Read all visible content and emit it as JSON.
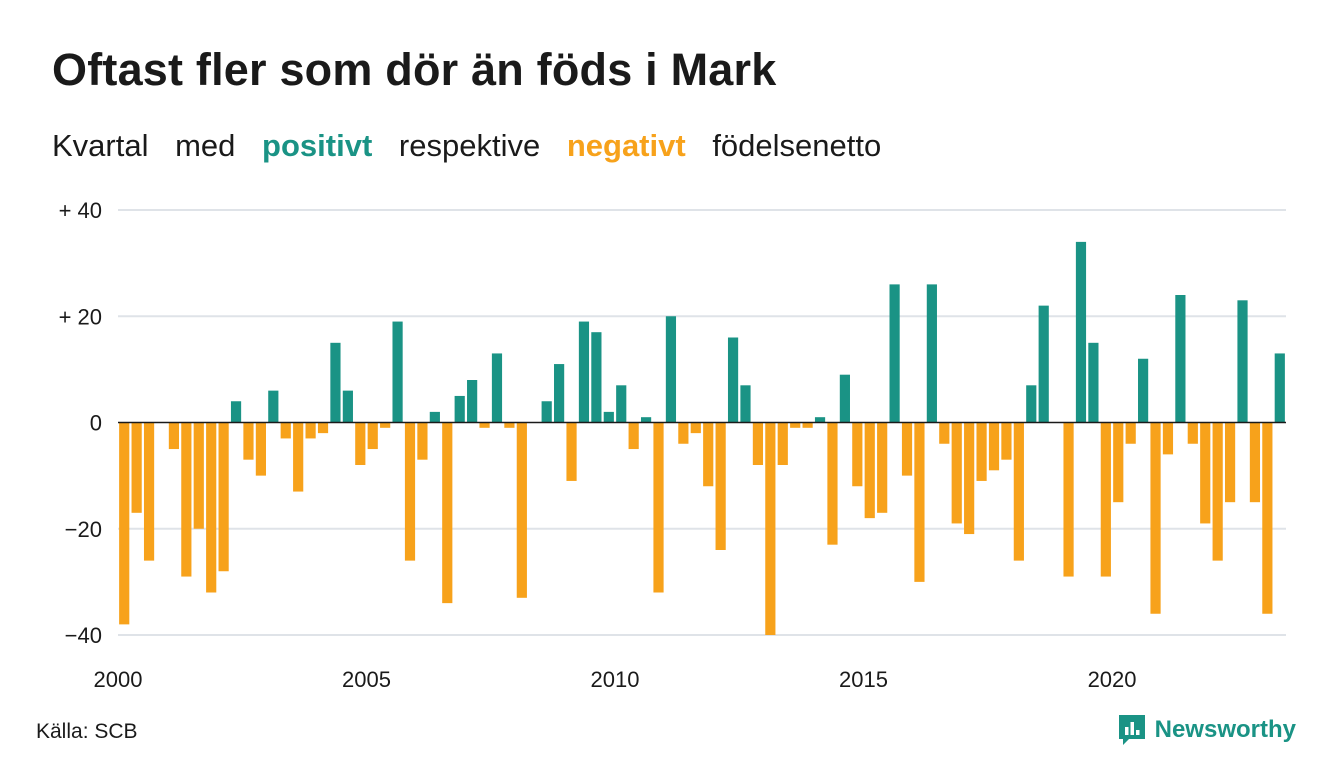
{
  "header": {
    "title": "Oftast fler som dör än föds i Mark",
    "subtitle": {
      "part1": "Kvartal",
      "part2": "med",
      "positive": "positivt",
      "part3": "respektive",
      "negative": "negativt",
      "part4": "födelsenetto"
    }
  },
  "footer": {
    "source": "Källa: SCB",
    "brand": "Newsworthy"
  },
  "colors": {
    "positive": "#1a9385",
    "negative": "#f7a21b",
    "grid": "#dfe3e8",
    "zero_line": "#1a1a1a"
  },
  "chart_data": {
    "type": "bar",
    "title": "Oftast fler som dör än föds i Mark",
    "subtitle": "Kvartal med positivt respektive negativt födelsenetto",
    "xlabel": "",
    "ylabel": "",
    "ylim": [
      -40,
      40
    ],
    "yticks": [
      {
        "value": 40,
        "label": "+ 40"
      },
      {
        "value": 20,
        "label": "+ 20"
      },
      {
        "value": 0,
        "label": "0"
      },
      {
        "value": -20,
        "label": "−20"
      },
      {
        "value": -40,
        "label": "−40"
      }
    ],
    "xticks": [
      {
        "year": 2000,
        "label": "2000"
      },
      {
        "year": 2005,
        "label": "2005"
      },
      {
        "year": 2010,
        "label": "2010"
      },
      {
        "year": 2015,
        "label": "2015"
      },
      {
        "year": 2020,
        "label": "2020"
      }
    ],
    "start": "2000 Q1",
    "grid": true,
    "legend": "none",
    "values": [
      -38,
      -17,
      -26,
      0,
      -5,
      -29,
      -20,
      -32,
      -28,
      4,
      -7,
      -10,
      6,
      -3,
      -13,
      -3,
      -2,
      15,
      6,
      -8,
      -5,
      -1,
      19,
      -26,
      -7,
      2,
      -34,
      5,
      8,
      -1,
      13,
      -1,
      -33,
      0,
      4,
      11,
      -11,
      19,
      17,
      2,
      7,
      -5,
      1,
      -32,
      20,
      -4,
      -2,
      -12,
      -24,
      16,
      7,
      -8,
      -40,
      -8,
      -1,
      -1,
      1,
      -23,
      9,
      -12,
      -18,
      -17,
      26,
      -10,
      -30,
      26,
      -4,
      -19,
      -21,
      -11,
      -9,
      -7,
      -26,
      7,
      22,
      0,
      -29,
      34,
      15,
      -29,
      -15,
      -4,
      12,
      -36,
      -6,
      24,
      -4,
      -19,
      -26,
      -15,
      23,
      -15,
      -36,
      13
    ]
  }
}
